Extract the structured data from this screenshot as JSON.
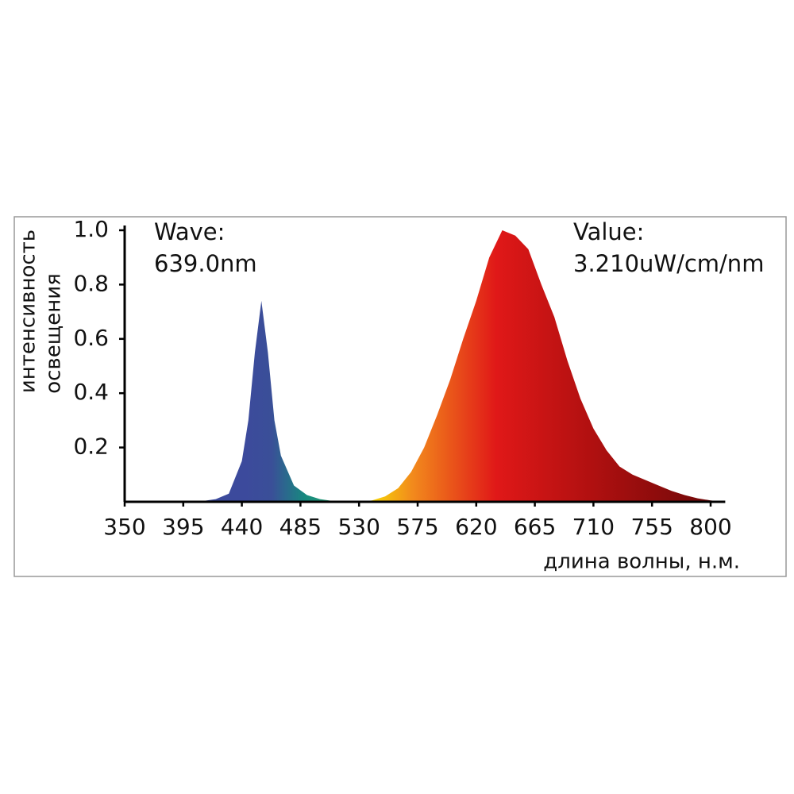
{
  "chart_data": {
    "type": "area",
    "y_label_lines": [
      "интенсивность",
      "освещения"
    ],
    "x_label": "длина волны, н.м.",
    "annotations": [
      "Wave:",
      "639.0nm",
      "Value:",
      "3.210uW/cm/nm"
    ],
    "x": [
      400,
      410,
      420,
      430,
      440,
      445,
      450,
      455,
      460,
      465,
      470,
      480,
      490,
      500,
      510,
      520,
      530,
      540,
      550,
      560,
      570,
      580,
      590,
      600,
      610,
      620,
      630,
      640,
      650,
      660,
      670,
      680,
      690,
      700,
      710,
      720,
      730,
      740,
      750,
      760,
      770,
      780,
      790,
      800,
      810
    ],
    "values": [
      0,
      0.003,
      0.01,
      0.03,
      0.15,
      0.3,
      0.55,
      0.74,
      0.55,
      0.3,
      0.17,
      0.06,
      0.025,
      0.01,
      0.003,
      0,
      0,
      0.005,
      0.02,
      0.05,
      0.11,
      0.2,
      0.32,
      0.45,
      0.6,
      0.74,
      0.9,
      1.0,
      0.98,
      0.93,
      0.8,
      0.68,
      0.52,
      0.38,
      0.27,
      0.19,
      0.13,
      0.1,
      0.08,
      0.06,
      0.04,
      0.025,
      0.013,
      0.005,
      0
    ],
    "xlim": [
      350,
      810
    ],
    "ylim": [
      0,
      1.0
    ],
    "xticks": [
      350,
      395,
      440,
      485,
      530,
      575,
      620,
      665,
      710,
      755,
      800
    ],
    "yticks": [
      0.2,
      0.4,
      0.6,
      0.8,
      {
        "value": 1.0,
        "label": "1.0"
      }
    ]
  }
}
